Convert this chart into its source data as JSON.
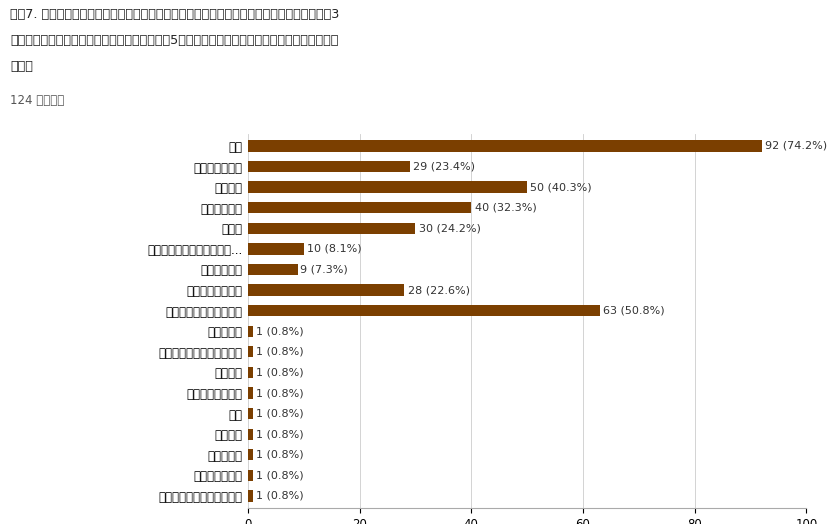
{
  "title_line1": "質問7. 学生が進学先を決める（出願する）に当たって、大きな要因になっていると思われる3",
  "title_line2": "つの選択肢を下記から選んでください。（質問5）で選択した国籍の学生を想定してご回答くだ",
  "title_line3": "さい。",
  "subtitle": "124 件の回答",
  "categories": [
    "学費",
    "自宅からの距離",
    "専攻分野",
    "知名度の高さ",
    "就職率",
    "合同説明会（進学イベント...",
    "学校内説明会",
    "日本語教師の推薦",
    "知人や先輩からの口コミ",
    "校長の推薦",
    "母国での知名度（早稲田）",
    "ビザ更新",
    "学生の日本語能力",
    "成績",
    "親の意向",
    "日本語能力",
    "大学ランキング",
    "賞与型奨学金。生活指導。"
  ],
  "values": [
    92,
    29,
    50,
    40,
    30,
    10,
    9,
    28,
    63,
    1,
    1,
    1,
    1,
    1,
    1,
    1,
    1,
    1
  ],
  "labels": [
    "92 (74.2%)",
    "29 (23.4%)",
    "50 (40.3%)",
    "40 (32.3%)",
    "30 (24.2%)",
    "10 (8.1%)",
    "9 (7.3%)",
    "28 (22.6%)",
    "63 (50.8%)",
    "1 (0.8%)",
    "1 (0.8%)",
    "1 (0.8%)",
    "1 (0.8%)",
    "1 (0.8%)",
    "1 (0.8%)",
    "1 (0.8%)",
    "1 (0.8%)",
    "1 (0.8%)"
  ],
  "bar_color": "#7B3F00",
  "background_color": "#ffffff",
  "xlim": [
    0,
    100
  ],
  "xticks": [
    0,
    20,
    40,
    60,
    80,
    100
  ],
  "label_fontsize": 8.5,
  "tick_fontsize": 8.5,
  "title_fontsize": 9.2,
  "subtitle_fontsize": 8.5,
  "bar_height": 0.55
}
